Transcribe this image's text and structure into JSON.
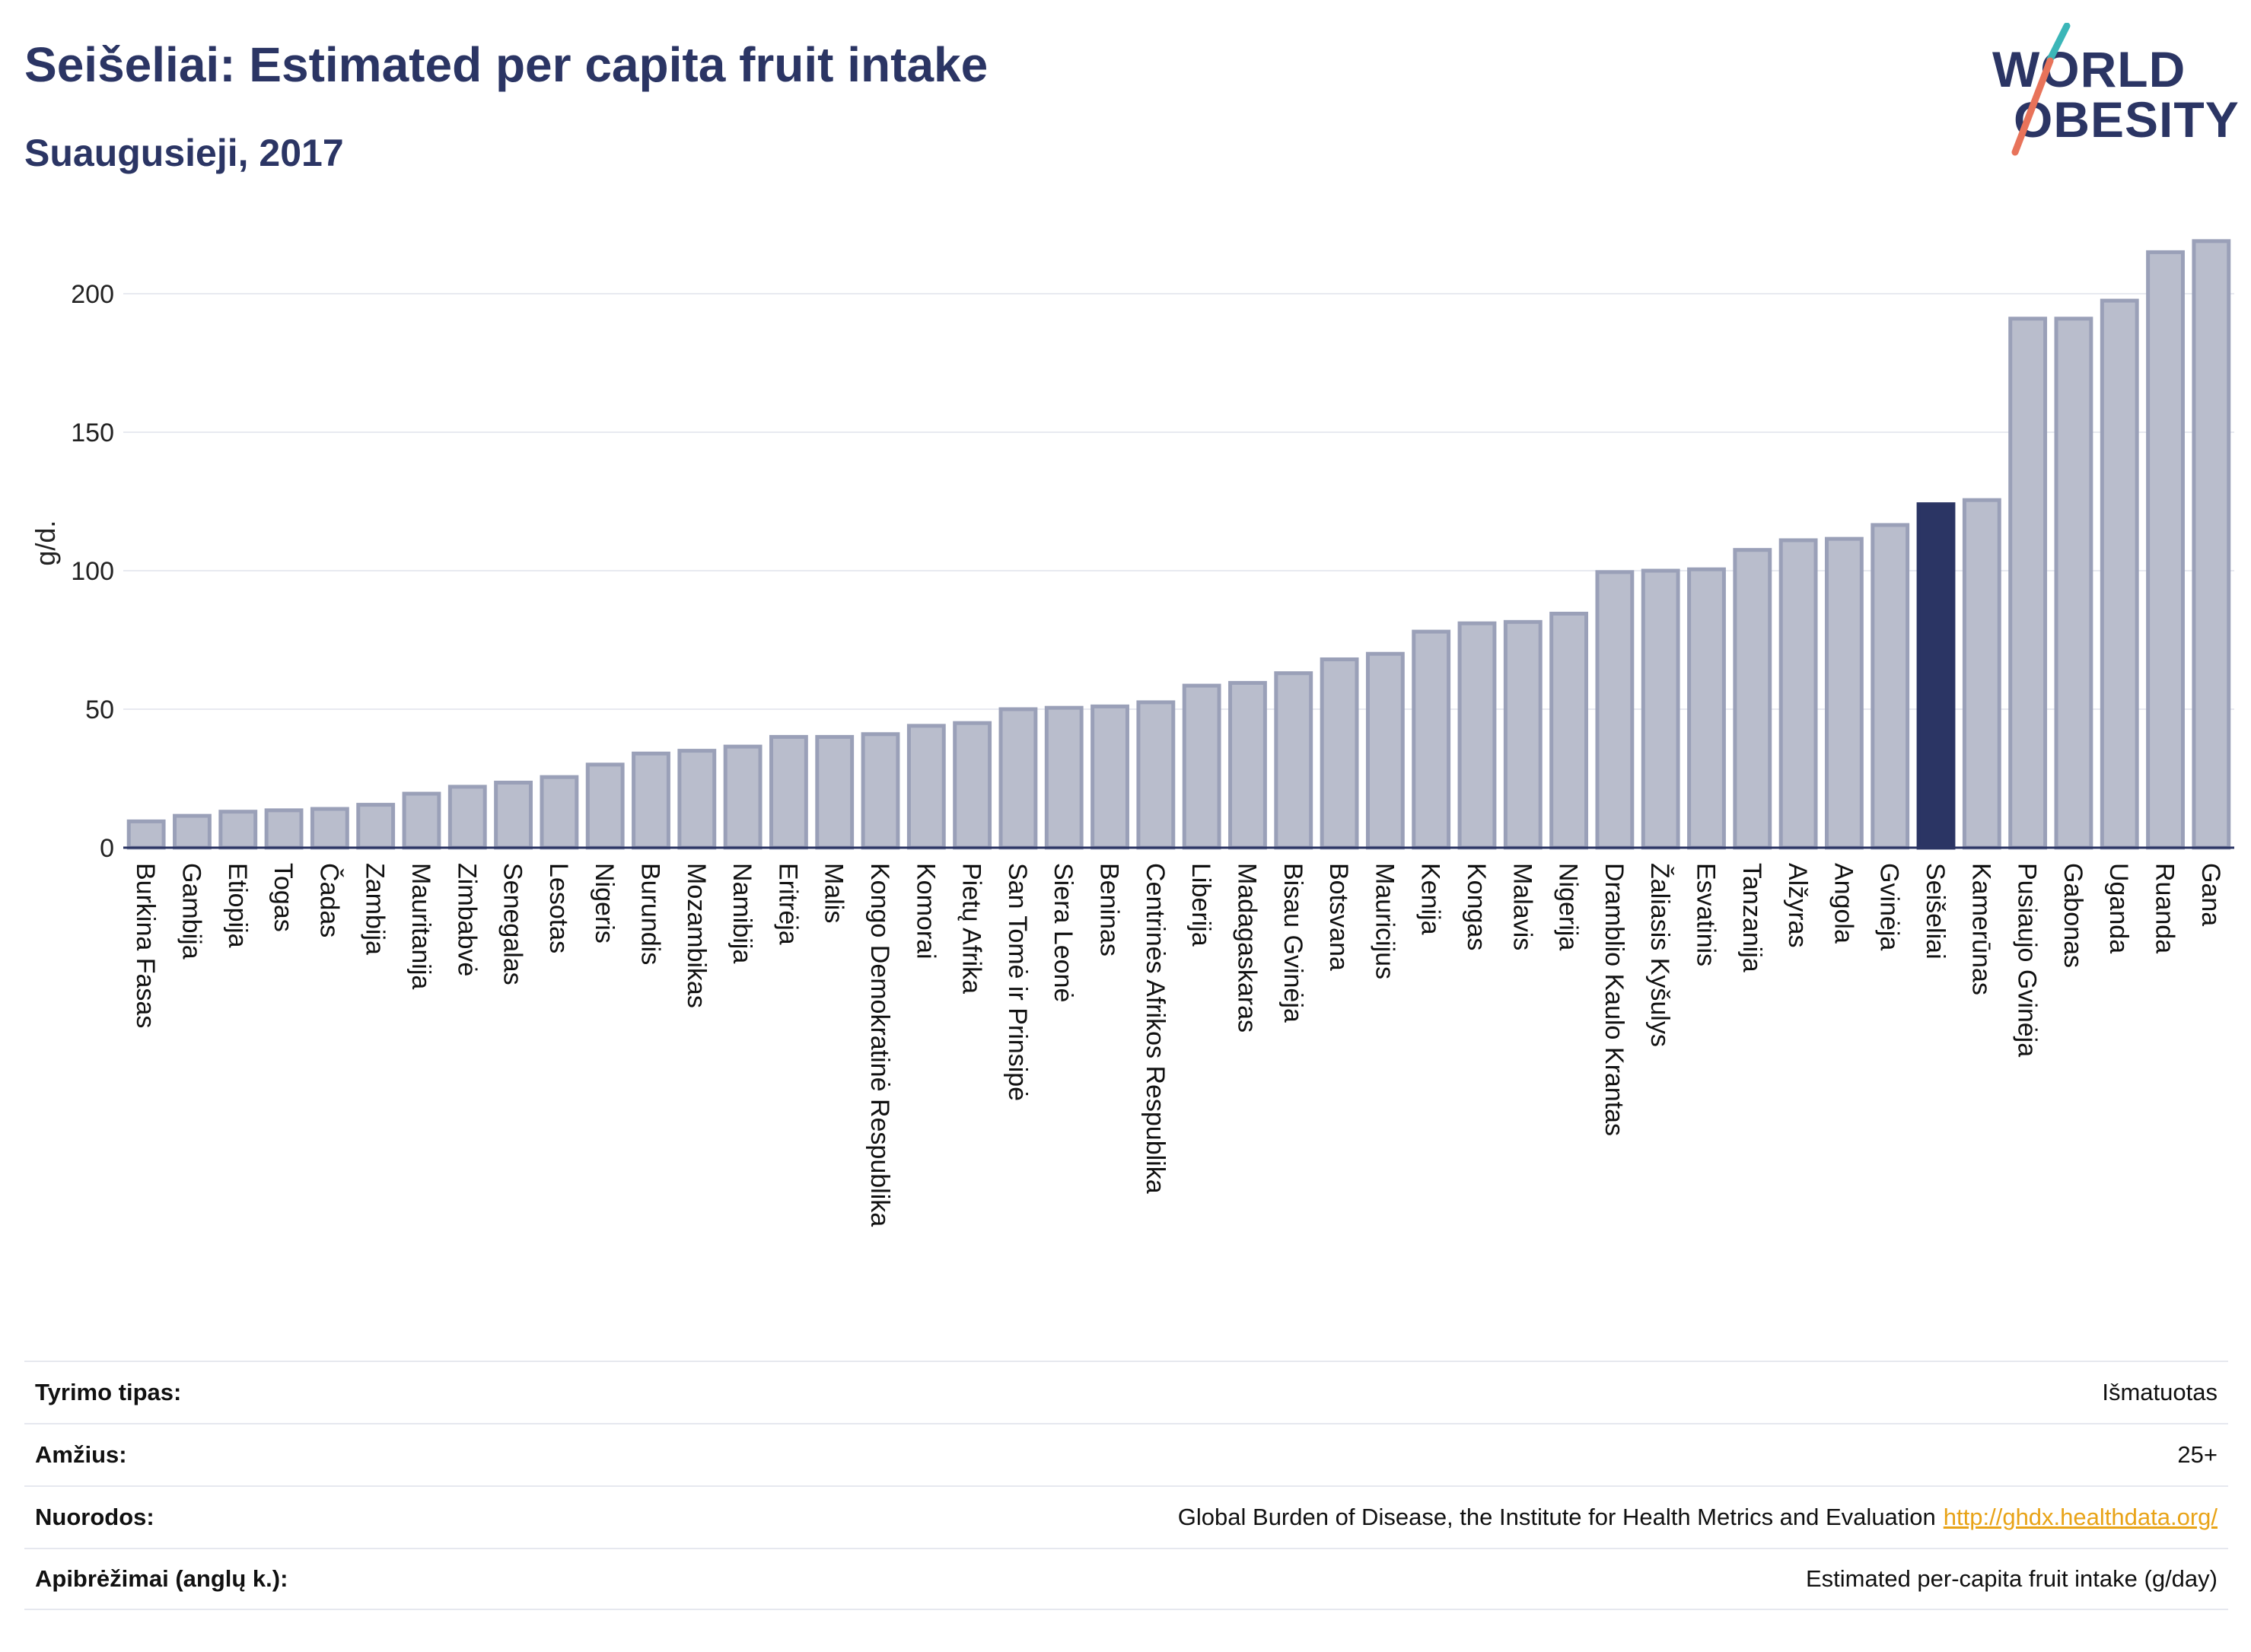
{
  "header": {
    "title": "Seišeliai: Estimated per capita fruit intake",
    "subtitle": "Suaugusieji, 2017"
  },
  "logo": {
    "line1": "WORLD",
    "line2": "OBESITY",
    "colors": {
      "text": "#2b3564",
      "teal": "#3bb6b8",
      "coral": "#e8735a"
    }
  },
  "chart_data": {
    "type": "bar",
    "title": "Seišeliai: Estimated per capita fruit intake",
    "subtitle": "Suaugusieji, 2017",
    "xlabel": "",
    "ylabel": "g/d.",
    "ylim": [
      0,
      220
    ],
    "yticks": [
      0,
      50,
      100,
      150,
      200
    ],
    "grid": true,
    "highlight": "Seišeliai",
    "colors": {
      "bar": "#b9bdcc",
      "bar_edge": "#9aa0b8",
      "highlight": "#2b3564",
      "grid": "#e8eaf0",
      "axis": "#2b3564"
    },
    "categories": [
      "Burkina Fasas",
      "Gambija",
      "Etiopija",
      "Togas",
      "Čadas",
      "Zambija",
      "Mauritanija",
      "Zimbabvė",
      "Senegalas",
      "Lesotas",
      "Nigeris",
      "Burundis",
      "Mozambikas",
      "Namibija",
      "Eritrėja",
      "Malis",
      "Kongo Demokratinė Respublika",
      "Komorai",
      "Pietų Afrika",
      "San Tomė ir Prinsipė",
      "Siera Leonė",
      "Beninas",
      "Centrinės Afrikos Respublika",
      "Liberija",
      "Madagaskaras",
      "Bisau Gvinėja",
      "Botsvana",
      "Mauricijus",
      "Kenija",
      "Kongas",
      "Malavis",
      "Nigerija",
      "Dramblio Kaulo Krantas",
      "Žaliasis Kyšulys",
      "Esvatinis",
      "Tanzanija",
      "Alžyras",
      "Angola",
      "Gvinėja",
      "Seišeliai",
      "Kamerūnas",
      "Pusiaujo Gvinėja",
      "Gabonas",
      "Uganda",
      "Ruanda",
      "Gana"
    ],
    "values": [
      9.5,
      11.5,
      13,
      13.5,
      14,
      15.5,
      19.5,
      22,
      23.5,
      25.5,
      30,
      34,
      35,
      36.5,
      40,
      40,
      41,
      44,
      45,
      50,
      50.5,
      51,
      52.5,
      58.5,
      59.5,
      63,
      68,
      70,
      78,
      81,
      81.5,
      84.5,
      99.5,
      100,
      100.5,
      107.5,
      111,
      111.5,
      116.5,
      124,
      125.5,
      191,
      191,
      197.5,
      215,
      219
    ]
  },
  "info": [
    {
      "label": "Tyrimo tipas:",
      "value": "Išmatuotas"
    },
    {
      "label": "Amžius:",
      "value": "25+"
    },
    {
      "label": "Nuorodos:",
      "value": "Global Burden of Disease, the Institute for Health Metrics and Evaluation",
      "link": "http://ghdx.healthdata.org/"
    },
    {
      "label": "Apibrėžimai (anglų k.):",
      "value": "Estimated per-capita fruit intake (g/day)"
    }
  ]
}
